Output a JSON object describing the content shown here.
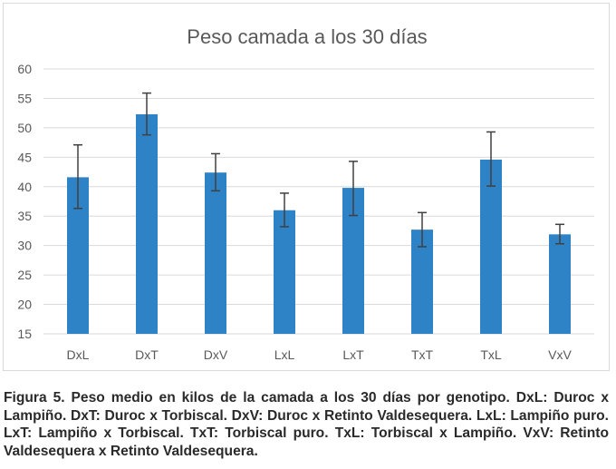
{
  "chart_data": {
    "type": "bar",
    "title": "Peso camada a los 30 días",
    "xlabel": "",
    "ylabel": "",
    "categories": [
      "DxL",
      "DxT",
      "DxV",
      "LxL",
      "LxT",
      "TxT",
      "TxL",
      "VxV"
    ],
    "series": [
      {
        "values": [
          41.6,
          52.3,
          42.4,
          36.0,
          39.8,
          32.7,
          44.6,
          31.9
        ],
        "error_low": [
          36.3,
          48.8,
          39.3,
          33.2,
          35.1,
          29.8,
          40.1,
          30.3
        ],
        "error_high": [
          47.1,
          55.9,
          45.6,
          38.9,
          44.3,
          35.6,
          49.3,
          33.6
        ],
        "color": "#2e82c6"
      }
    ],
    "ylim": [
      15,
      60
    ],
    "yticks": [
      "15",
      "20",
      "25",
      "30",
      "35",
      "40",
      "45",
      "50",
      "55",
      "60"
    ],
    "grid": true,
    "legend": "none"
  },
  "caption": "Figura 5. Peso medio en kilos de la camada a los 30 días por genotipo. DxL: Duroc x Lampiño. DxT: Duroc x Torbiscal. DxV: Duroc x Retinto Valdesequera. LxL: Lampiño puro. LxT: Lampiño x Torbiscal. TxT: Torbiscal puro. TxL: Torbiscal x Lampiño. VxV: Retinto Valdesequera x Retinto Valdesequera.",
  "colors": {
    "bar": "#2e82c6",
    "error_bar": "#404040",
    "grid": "#d9d9d9",
    "axis_text": "#595959",
    "title_text": "#595959"
  }
}
